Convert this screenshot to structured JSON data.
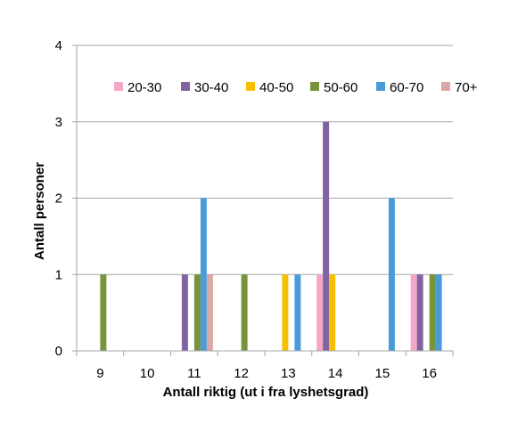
{
  "chart_data": {
    "type": "bar",
    "categories": [
      "9",
      "10",
      "11",
      "12",
      "13",
      "14",
      "15",
      "16"
    ],
    "series": [
      {
        "name": "20-30",
        "color": "#F4A7C8",
        "values": [
          0,
          0,
          0,
          0,
          0,
          1,
          0,
          1
        ]
      },
      {
        "name": "30-40",
        "color": "#8064A2",
        "values": [
          0,
          0,
          1,
          0,
          0,
          3,
          0,
          1
        ]
      },
      {
        "name": "40-50",
        "color": "#F5C000",
        "values": [
          0,
          0,
          0,
          0,
          1,
          1,
          0,
          0
        ]
      },
      {
        "name": "50-60",
        "color": "#77933C",
        "values": [
          1,
          0,
          1,
          1,
          0,
          0,
          0,
          1
        ]
      },
      {
        "name": "60-70",
        "color": "#4A9CD8",
        "values": [
          0,
          0,
          2,
          0,
          1,
          0,
          2,
          1
        ]
      },
      {
        "name": "70+",
        "color": "#D9A7A5",
        "values": [
          0,
          0,
          1,
          0,
          0,
          0,
          0,
          0
        ]
      }
    ],
    "xlabel": "Antall riktig (ut i fra lyshetsgrad)",
    "ylabel": "Antall personer",
    "yticks": [
      "0",
      "1",
      "2",
      "3",
      "4"
    ],
    "ylim": [
      0,
      4
    ],
    "grid": true,
    "legend_position": "top"
  }
}
